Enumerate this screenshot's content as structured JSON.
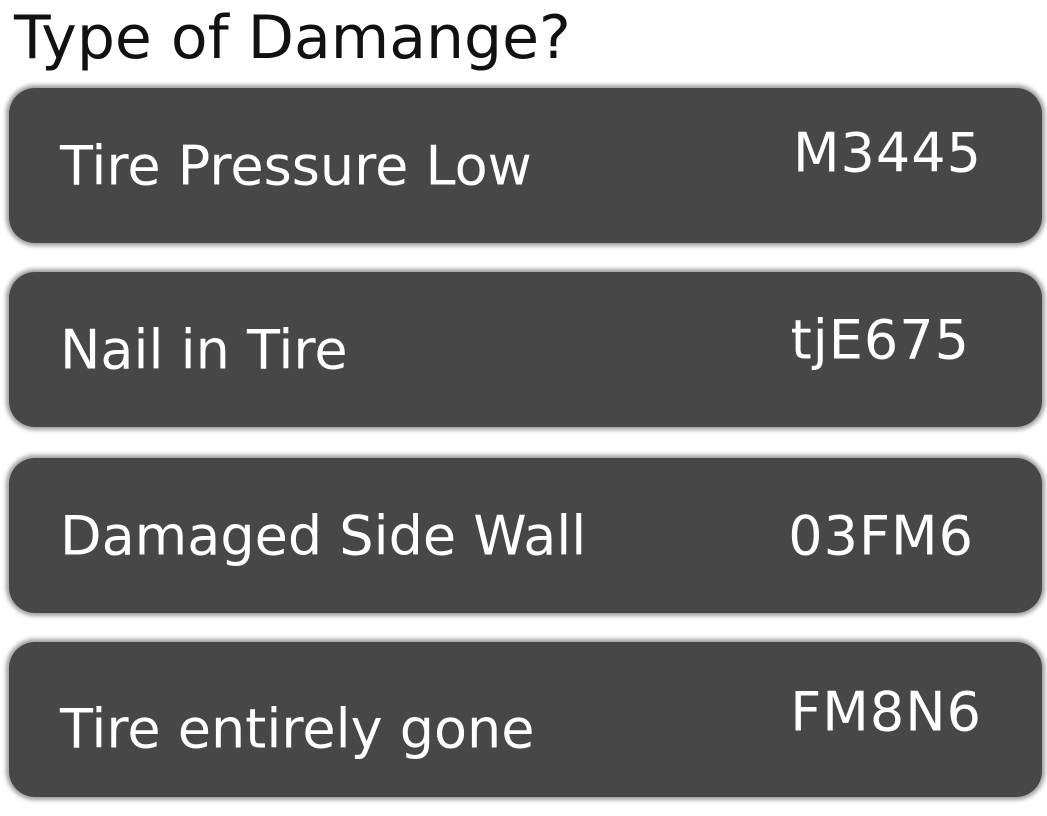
{
  "title": "Type of Damange?",
  "options": [
    {
      "label": "Tire Pressure Low",
      "code": "M3445"
    },
    {
      "label": "Nail in Tire",
      "code": "tjE675"
    },
    {
      "label": "Damaged Side Wall",
      "code": "03FM6"
    },
    {
      "label": "Tire entirely gone",
      "code": "FM8N6"
    }
  ],
  "colors": {
    "option_background": "#474747",
    "option_text": "#ffffff",
    "title_text": "#111111",
    "page_background": "#ffffff"
  }
}
